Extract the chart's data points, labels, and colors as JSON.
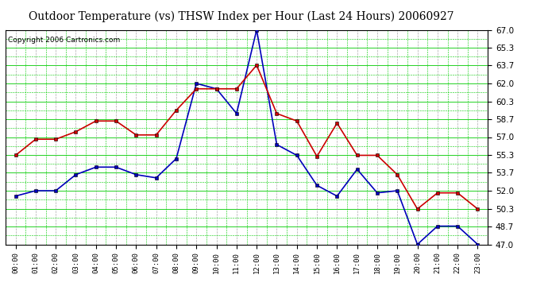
{
  "title": "Outdoor Temperature (vs) THSW Index per Hour (Last 24 Hours) 20060927",
  "copyright": "Copyright 2006 Cartronics.com",
  "hours": [
    "00:00",
    "01:00",
    "02:00",
    "03:00",
    "04:00",
    "05:00",
    "06:00",
    "07:00",
    "08:00",
    "09:00",
    "10:00",
    "11:00",
    "12:00",
    "13:00",
    "14:00",
    "15:00",
    "16:00",
    "17:00",
    "18:00",
    "19:00",
    "20:00",
    "21:00",
    "22:00",
    "23:00"
  ],
  "temp_red": [
    55.3,
    56.8,
    56.8,
    57.5,
    58.5,
    58.5,
    57.2,
    57.2,
    59.5,
    61.5,
    61.5,
    61.5,
    63.7,
    59.2,
    58.5,
    55.2,
    58.3,
    55.3,
    55.3,
    53.5,
    50.3,
    51.8,
    51.8,
    50.3
  ],
  "thsw_blue": [
    51.5,
    52.0,
    52.0,
    53.5,
    54.2,
    54.2,
    53.5,
    53.2,
    55.0,
    62.0,
    61.5,
    59.2,
    67.0,
    56.3,
    55.3,
    52.5,
    51.5,
    54.0,
    51.8,
    52.0,
    47.0,
    48.7,
    48.7,
    47.0
  ],
  "ylim_min": 47.0,
  "ylim_max": 67.0,
  "yticks": [
    47.0,
    48.7,
    50.3,
    52.0,
    53.7,
    55.3,
    57.0,
    58.7,
    60.3,
    62.0,
    63.7,
    65.3,
    67.0
  ],
  "red_color": "#cc0000",
  "blue_color": "#0000bb",
  "bg_color": "#ffffff",
  "grid_solid_color": "#00cc00",
  "grid_dash_color": "#888888",
  "title_fontsize": 10,
  "copyright_fontsize": 6.5
}
